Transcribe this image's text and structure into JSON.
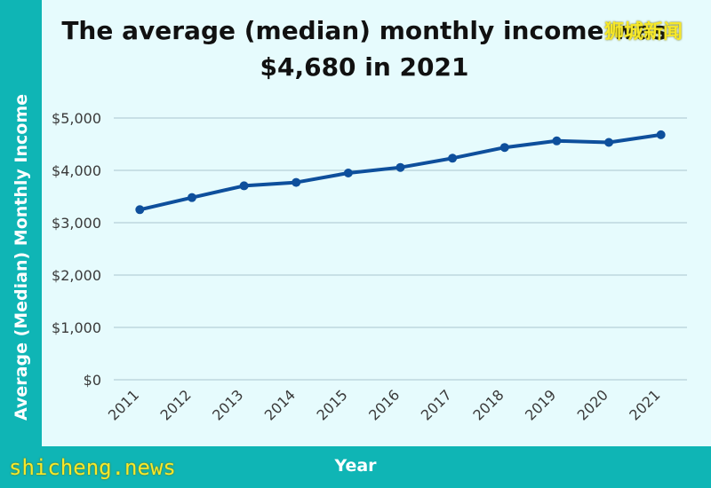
{
  "chart_data": {
    "type": "line",
    "title": "The average (median) monthly income was $4,680 in 2021",
    "xlabel": "Year",
    "ylabel": "Average (Median) Monthly Income",
    "categories": [
      "2011",
      "2012",
      "2013",
      "2014",
      "2015",
      "2016",
      "2017",
      "2018",
      "2019",
      "2020",
      "2021"
    ],
    "series": [
      {
        "values": [
          3249,
          3480,
          3705,
          3770,
          3949,
          4056,
          4232,
          4437,
          4563,
          4534,
          4680
        ]
      }
    ],
    "ylim": [
      0,
      5000
    ],
    "yticks": [
      0,
      1000,
      2000,
      3000,
      4000,
      5000
    ],
    "ytick_labels": [
      "$0",
      "$1,000",
      "$2,000",
      "$3,000",
      "$4,000",
      "$5,000"
    ],
    "grid": "horizontal",
    "colors": {
      "line": "#0e4f9c",
      "grid": "#a9c6cf",
      "band": "#0fb5b5"
    }
  },
  "watermarks": {
    "top": "狮城新闻",
    "bottom": "shicheng.news"
  }
}
